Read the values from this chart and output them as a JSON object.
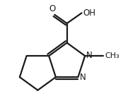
{
  "bg_color": "#ffffff",
  "line_color": "#1a1a1a",
  "line_width": 1.6,
  "font_size": 8.5,
  "figsize": [
    1.74,
    1.5
  ],
  "dpi": 100,
  "xlim": [
    -0.55,
    0.55
  ],
  "ylim": [
    -0.5,
    0.58
  ]
}
